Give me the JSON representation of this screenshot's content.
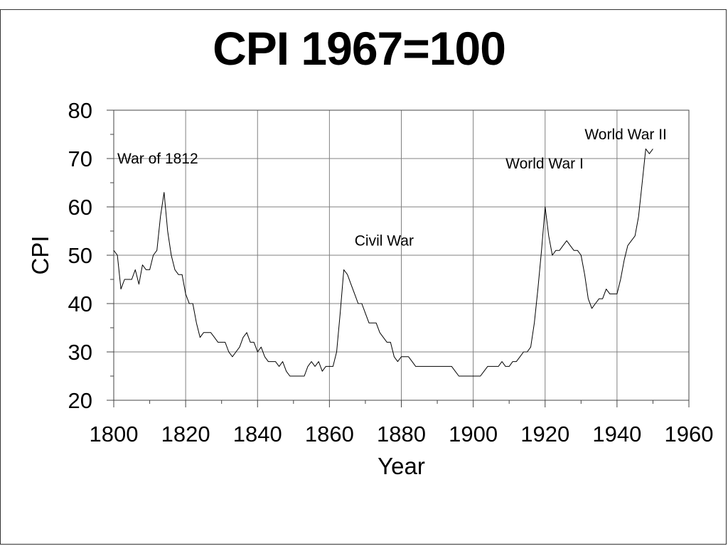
{
  "chart_data": {
    "type": "line",
    "title": "CPI 1967=100",
    "xlabel": "Year",
    "ylabel": "CPI",
    "xlim": [
      1800,
      1960
    ],
    "ylim": [
      20,
      80
    ],
    "xticks": [
      1800,
      1820,
      1840,
      1860,
      1880,
      1900,
      1920,
      1940,
      1960
    ],
    "yticks": [
      20,
      30,
      40,
      50,
      60,
      70,
      80
    ],
    "grid": true,
    "legend": "none",
    "line_color": "#000000",
    "series": [
      {
        "x": [
          1800,
          1801,
          1802,
          1803,
          1804,
          1805,
          1806,
          1807,
          1808,
          1809,
          1810,
          1811,
          1812,
          1813,
          1814,
          1815,
          1816,
          1817,
          1818,
          1819,
          1820,
          1821,
          1822,
          1823,
          1824,
          1825,
          1826,
          1827,
          1828,
          1829,
          1830,
          1831,
          1832,
          1833,
          1834,
          1835,
          1836,
          1837,
          1838,
          1839,
          1840,
          1841,
          1842,
          1843,
          1844,
          1845,
          1846,
          1847,
          1848,
          1849,
          1850,
          1851,
          1852,
          1853,
          1854,
          1855,
          1856,
          1857,
          1858,
          1859,
          1860,
          1861,
          1862,
          1863,
          1864,
          1865,
          1866,
          1867,
          1868,
          1869,
          1870,
          1871,
          1872,
          1873,
          1874,
          1875,
          1876,
          1877,
          1878,
          1879,
          1880,
          1881,
          1882,
          1883,
          1884,
          1885,
          1886,
          1887,
          1888,
          1889,
          1890,
          1891,
          1892,
          1893,
          1894,
          1895,
          1896,
          1897,
          1898,
          1899,
          1900,
          1901,
          1902,
          1903,
          1904,
          1905,
          1906,
          1907,
          1908,
          1909,
          1910,
          1911,
          1912,
          1913,
          1914,
          1915,
          1916,
          1917,
          1918,
          1919,
          1920,
          1921,
          1922,
          1923,
          1924,
          1925,
          1926,
          1927,
          1928,
          1929,
          1930,
          1931,
          1932,
          1933,
          1934,
          1935,
          1936,
          1937,
          1938,
          1939,
          1940,
          1941,
          1942,
          1943,
          1944,
          1945,
          1946,
          1947,
          1948,
          1949,
          1950
        ],
        "values": [
          51,
          50,
          43,
          45,
          45,
          45,
          47,
          44,
          48,
          47,
          47,
          50,
          51,
          58,
          63,
          55,
          50,
          47,
          46,
          46,
          42,
          40,
          40,
          36,
          33,
          34,
          34,
          34,
          33,
          32,
          32,
          32,
          30,
          29,
          30,
          31,
          33,
          34,
          32,
          32,
          30,
          31,
          29,
          28,
          28,
          28,
          27,
          28,
          26,
          25,
          25,
          25,
          25,
          25,
          27,
          28,
          27,
          28,
          26,
          27,
          27,
          27,
          30,
          38,
          47,
          46,
          44,
          42,
          40,
          40,
          38,
          36,
          36,
          36,
          34,
          33,
          32,
          32,
          29,
          28,
          29,
          29,
          29,
          28,
          27,
          27,
          27,
          27,
          27,
          27,
          27,
          27,
          27,
          27,
          27,
          26,
          25,
          25,
          25,
          25,
          25,
          25,
          25,
          26,
          27,
          27,
          27,
          27,
          28,
          27,
          27,
          28,
          28,
          29,
          30,
          30,
          31,
          36,
          43,
          51,
          60,
          54,
          50,
          51,
          51,
          52,
          53,
          52,
          51,
          51,
          50,
          46,
          41,
          39,
          40,
          41,
          41,
          43,
          42,
          42,
          42,
          45,
          49,
          52,
          53,
          54,
          58,
          65,
          72,
          71,
          72
        ]
      }
    ],
    "annotations": [
      {
        "text": "War of 1812",
        "x": 1801,
        "y": 70
      },
      {
        "text": "Civil War",
        "x": 1867,
        "y": 53
      },
      {
        "text": "World War I",
        "x": 1909,
        "y": 69
      },
      {
        "text": "World War II",
        "x": 1931,
        "y": 75
      }
    ]
  }
}
